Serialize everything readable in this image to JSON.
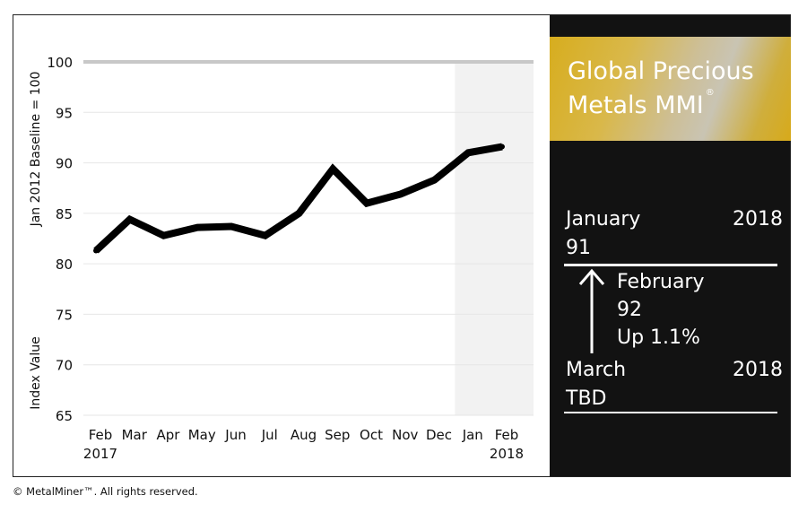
{
  "chart_data": {
    "type": "line",
    "categories": [
      "Feb 2017",
      "Mar",
      "Apr",
      "May",
      "Jun",
      "Jul",
      "Aug",
      "Sep",
      "Oct",
      "Nov",
      "Dec",
      "Jan",
      "Feb 2018"
    ],
    "tick_labels_line1": [
      "Feb",
      "Mar",
      "Apr",
      "May",
      "Jun",
      "Jul",
      "Aug",
      "Sep",
      "Oct",
      "Nov",
      "Dec",
      "Jan",
      "Feb"
    ],
    "tick_labels_line2": [
      "2017",
      "",
      "",
      "",
      "",
      "",
      "",
      "",
      "",
      "",
      "",
      "",
      "2018"
    ],
    "values": [
      81.3,
      84.4,
      82.8,
      83.6,
      83.7,
      82.8,
      85.0,
      89.4,
      86.0,
      86.9,
      88.3,
      91.0,
      91.6
    ],
    "ylabel_top": "Jan 2012 Baseline = 100",
    "ylabel_bottom": "Index Value",
    "ylim": [
      65,
      100
    ],
    "yticks": [
      65,
      70,
      75,
      80,
      85,
      90,
      95,
      100
    ],
    "grid": true,
    "highlight_last_months": 2,
    "line_color": "#000000",
    "baseline_color": "#c8c8c8",
    "highlight_color": "#f2f2f2"
  },
  "panel": {
    "title_line1": "Global Precious",
    "title_line2": "Metals MMI",
    "title_mark": "®",
    "current": {
      "month": "January",
      "year": "2018",
      "value": "91"
    },
    "change": {
      "month": "February",
      "value": "92",
      "direction": "Up 1.1%"
    },
    "next": {
      "month": "March",
      "year": "2018",
      "value": "TBD"
    },
    "background_color": "#121212",
    "gold_color": "#d7ad1e"
  },
  "footer": {
    "copyright": "© MetalMiner™. All rights reserved."
  }
}
